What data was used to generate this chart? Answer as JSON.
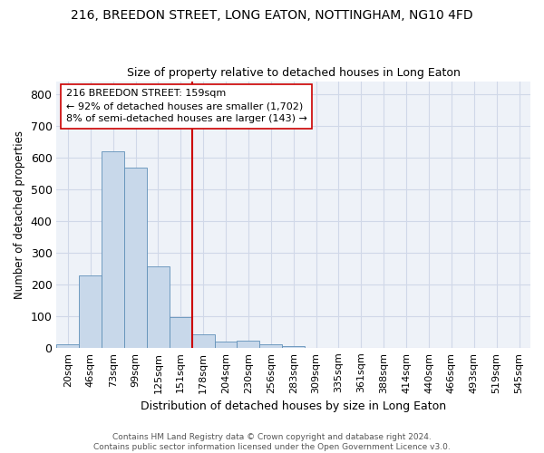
{
  "title1": "216, BREEDON STREET, LONG EATON, NOTTINGHAM, NG10 4FD",
  "title2": "Size of property relative to detached houses in Long Eaton",
  "xlabel": "Distribution of detached houses by size in Long Eaton",
  "ylabel": "Number of detached properties",
  "bar_color": "#c8d8ea",
  "bar_edge_color": "#6090b8",
  "bin_labels": [
    "20sqm",
    "46sqm",
    "73sqm",
    "99sqm",
    "125sqm",
    "151sqm",
    "178sqm",
    "204sqm",
    "230sqm",
    "256sqm",
    "283sqm",
    "309sqm",
    "335sqm",
    "361sqm",
    "388sqm",
    "414sqm",
    "440sqm",
    "466sqm",
    "493sqm",
    "519sqm",
    "545sqm"
  ],
  "bar_heights": [
    10,
    228,
    618,
    568,
    255,
    97,
    43,
    20,
    22,
    10,
    5,
    0,
    0,
    0,
    0,
    0,
    0,
    0,
    0,
    0,
    0
  ],
  "ylim": [
    0,
    840
  ],
  "yticks": [
    0,
    100,
    200,
    300,
    400,
    500,
    600,
    700,
    800
  ],
  "property_line_x": 5.5,
  "annotation_text1": "216 BREEDON STREET: 159sqm",
  "annotation_text2": "← 92% of detached houses are smaller (1,702)",
  "annotation_text3": "8% of semi-detached houses are larger (143) →",
  "vline_color": "#cc0000",
  "annotation_box_color": "#ffffff",
  "annotation_box_edge_color": "#cc0000",
  "footer1": "Contains HM Land Registry data © Crown copyright and database right 2024.",
  "footer2": "Contains public sector information licensed under the Open Government Licence v3.0.",
  "grid_color": "#d0d8e8",
  "background_color": "#eef2f8"
}
